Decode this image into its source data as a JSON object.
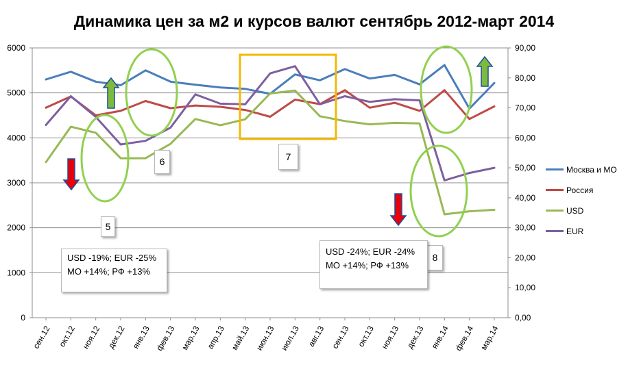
{
  "chart_data": {
    "type": "line",
    "title": "Динамика цен за м2 и курсов валют сентябрь 2012-март 2014",
    "categories": [
      "сен.12",
      "окт.12",
      "ноя.12",
      "дек.12",
      "янв.13",
      "фев.13",
      "мар.13",
      "апр.13",
      "май.13",
      "июн.13",
      "июл.13",
      "авг.13",
      "сен.13",
      "окт.13",
      "ноя.13",
      "дек.13",
      "янв.14",
      "фев.14",
      "мар.14"
    ],
    "y_left": {
      "min": 0,
      "max": 6000,
      "ticks": [
        "0",
        "1000",
        "2000",
        "3000",
        "4000",
        "5000",
        "6000"
      ]
    },
    "y_right": {
      "min": 0,
      "max": 90,
      "ticks": [
        "0,00",
        "10,00",
        "20,00",
        "30,00",
        "40,00",
        "50,00",
        "60,00",
        "70,00",
        "80,00",
        "90,00"
      ]
    },
    "series": [
      {
        "name": "Москва и МО",
        "axis": "left",
        "color": "#4a7ebb",
        "values": [
          5300,
          5470,
          5250,
          5170,
          5500,
          5250,
          5180,
          5120,
          5090,
          4980,
          5410,
          5280,
          5530,
          5320,
          5400,
          5190,
          5620,
          4650,
          5220
        ]
      },
      {
        "name": "Россия",
        "axis": "left",
        "color": "#be4b48",
        "values": [
          4670,
          4920,
          4500,
          4600,
          4820,
          4660,
          4720,
          4690,
          4620,
          4470,
          4850,
          4750,
          5060,
          4670,
          4780,
          4600,
          5060,
          4420,
          4700
        ]
      },
      {
        "name": "USD",
        "axis": "right",
        "color": "#98b954",
        "values": [
          51.9,
          63.7,
          61.7,
          53.2,
          53.2,
          58.0,
          66.3,
          64.2,
          66.2,
          74.8,
          75.8,
          67.2,
          65.6,
          64.5,
          65.0,
          64.8,
          34.5,
          35.5,
          36.0
        ]
      },
      {
        "name": "EUR",
        "axis": "right",
        "color": "#7d5fa0",
        "values": [
          64.3,
          73.9,
          67.0,
          57.8,
          59.0,
          63.4,
          74.5,
          71.4,
          71.2,
          81.5,
          83.9,
          71.2,
          73.9,
          72.0,
          72.9,
          72.5,
          45.8,
          48.3,
          50.0
        ]
      }
    ],
    "legend_position": "right",
    "grid": true
  },
  "annotations": {
    "n5": "5",
    "n6": "6",
    "n7": "7",
    "n8": "8",
    "box1_line1": "USD -19%; EUR -25%",
    "box1_line2": "МО +14%; РФ +13%",
    "box2_line1": "USD -24%; EUR -24%",
    "box2_line2": "МО +14%; РФ +13%"
  },
  "colors": {
    "ellipse": "#92d050",
    "highlight_rect": "#f5b800",
    "arrow_up_fill": "#7dbb3f",
    "arrow_down_fill": "#e8000b",
    "arrow_outline": "#1f4e9a"
  }
}
